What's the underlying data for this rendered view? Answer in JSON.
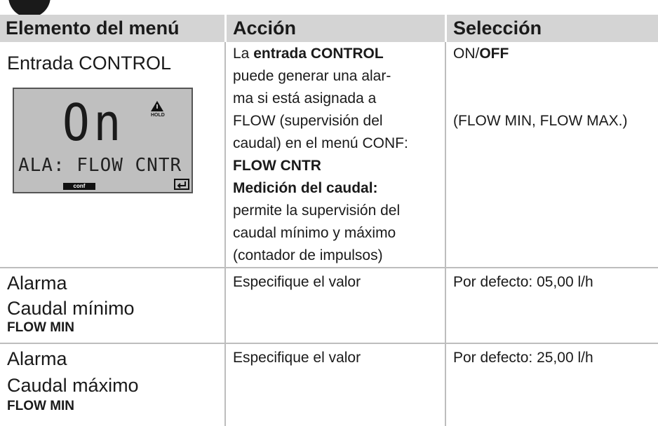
{
  "header": {
    "columns": [
      "Elemento del menú",
      "Acción",
      "Selección"
    ]
  },
  "lcd": {
    "main": "On",
    "text": "ALA: FLOW CNTR",
    "mode": "conf",
    "icon": "HOLD"
  },
  "rows": [
    {
      "item": [
        "Entrada CONTROL"
      ],
      "action": [
        [
          "La ",
          "entrada CONTROL"
        ],
        [
          "puede generar una alar-"
        ],
        [
          "ma si está asignada a"
        ],
        [
          "FLOW (supervisión del"
        ],
        [
          "caudal) en el menú CONF:"
        ],
        [
          "FLOW CNTR"
        ],
        [
          "Medición del caudal:"
        ],
        [
          "permite la supervisión del"
        ],
        [
          "caudal mínimo y máximo"
        ],
        [
          "(contador de impulsos)"
        ]
      ],
      "selection": [
        [
          "ON/",
          "OFF"
        ],
        [
          "(FLOW MIN, FLOW MAX.)"
        ]
      ]
    },
    {
      "item": [
        "Alarma",
        "Caudal mínimo",
        "FLOW MIN"
      ],
      "action": [
        [
          "Especifique el valor"
        ]
      ],
      "selection": [
        [
          "Por defecto: 05,00 l/h"
        ]
      ]
    },
    {
      "item": [
        "Alarma",
        "Caudal máximo",
        "FLOW MIN"
      ],
      "action": [
        [
          "Especifique el valor"
        ]
      ],
      "selection": [
        [
          "Por defecto: 25,00 l/h"
        ]
      ]
    }
  ]
}
